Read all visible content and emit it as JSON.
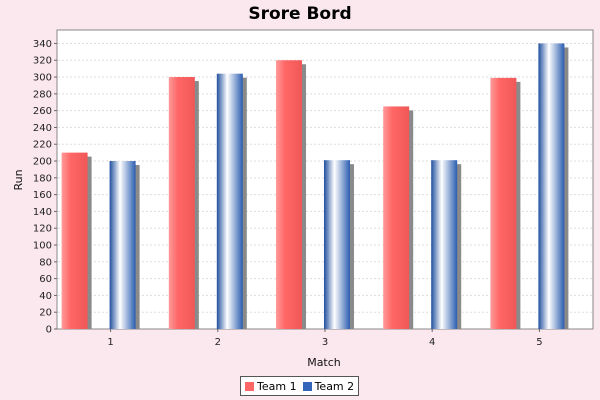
{
  "chart_data": {
    "type": "bar",
    "title": "Srore Bord",
    "xlabel": "Match",
    "ylabel": "Run",
    "categories": [
      "1",
      "2",
      "3",
      "4",
      "5"
    ],
    "series": [
      {
        "name": "Team 1",
        "color": "#ff6666",
        "values": [
          210,
          300,
          320,
          265,
          299
        ]
      },
      {
        "name": "Team 2",
        "color": "#3366bb",
        "values": [
          200,
          304,
          201,
          201,
          340
        ]
      }
    ],
    "ylim": [
      0,
      356
    ],
    "yticks": [
      0,
      20,
      40,
      60,
      80,
      100,
      120,
      140,
      160,
      180,
      200,
      220,
      240,
      260,
      280,
      300,
      320,
      340
    ],
    "grid": true,
    "legend_position": "bottom-center"
  }
}
